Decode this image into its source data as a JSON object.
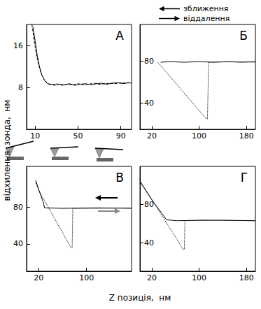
{
  "x_label": "Z позиція,  нм",
  "y_label": "відхилення  зонда,  нм",
  "chart_data": [
    {
      "type": "line",
      "title": "А",
      "grid": false,
      "xlim": [
        2,
        100
      ],
      "xticks": [
        10,
        50,
        90
      ],
      "ylim": [
        0,
        20
      ],
      "yticks": [
        8,
        16
      ],
      "series": [
        {
          "name": "зближення",
          "color": "#000000",
          "line_style": "dashed",
          "x": [
            7,
            9,
            11,
            13,
            15,
            17,
            19,
            21,
            23,
            26,
            30,
            35,
            40,
            45,
            50,
            55,
            60,
            65,
            70,
            75,
            80,
            85,
            90,
            95,
            100
          ],
          "values": [
            20,
            17,
            14.5,
            12.5,
            11,
            10,
            9.3,
            8.9,
            8.6,
            8.5,
            8.7,
            8.4,
            8.6,
            8.5,
            8.7,
            8.5,
            8.6,
            8.8,
            8.6,
            8.7,
            8.8,
            8.7,
            8.9,
            8.8,
            8.9
          ]
        },
        {
          "name": "віддалення",
          "color": "#000000",
          "line_style": "solid",
          "x": [
            8,
            10,
            12,
            14,
            16,
            18,
            20,
            22,
            25,
            28,
            32,
            37,
            42,
            47,
            52,
            57,
            62,
            67,
            72,
            77,
            82,
            87,
            92,
            97,
            100
          ],
          "values": [
            19.5,
            16.8,
            14,
            12,
            10.5,
            9.6,
            9,
            8.7,
            8.6,
            8.4,
            8.6,
            8.5,
            8.7,
            8.4,
            8.6,
            8.7,
            8.5,
            8.7,
            8.8,
            8.6,
            8.8,
            8.9,
            8.7,
            8.9,
            8.8
          ]
        }
      ]
    },
    {
      "type": "line",
      "title": "Б",
      "grid": false,
      "xlim": [
        0,
        195
      ],
      "xticks": [
        20,
        100,
        180
      ],
      "ylim": [
        15,
        115
      ],
      "yticks": [
        40,
        80
      ],
      "series": [
        {
          "name": "зближення",
          "color": "#000000",
          "line_style": "solid",
          "x": [
            195,
            170,
            150,
            125,
            100,
            75,
            50,
            35
          ],
          "values": [
            79.5,
            79,
            79.5,
            79,
            79.5,
            79,
            79.5,
            79
          ]
        },
        {
          "name": "віддалення",
          "color": "#000000",
          "line_style": "dotted",
          "x": [
            30,
            112,
            114,
            116,
            150,
            195
          ],
          "values": [
            79,
            25,
            25,
            79,
            79.5,
            79
          ]
        }
      ]
    },
    {
      "type": "line",
      "title": "В",
      "grid": false,
      "xlim": [
        0,
        175
      ],
      "xticks": [
        20,
        100
      ],
      "ylim": [
        10,
        125
      ],
      "yticks": [
        40,
        80
      ],
      "series": [
        {
          "name": "зближення",
          "color": "#000000",
          "line_style": "solid",
          "x": [
            175,
            120,
            60,
            30,
            28,
            20,
            15
          ],
          "values": [
            79,
            79.5,
            79,
            79.5,
            85,
            100,
            110
          ]
        },
        {
          "name": "віддалення",
          "color": "#000000",
          "line_style": "dotted",
          "x": [
            15,
            20,
            74,
            76,
            77,
            120,
            175
          ],
          "values": [
            108,
            99,
            36,
            36,
            79,
            79,
            79.5
          ]
        }
      ]
    },
    {
      "type": "line",
      "title": "Г",
      "grid": false,
      "xlim": [
        0,
        195
      ],
      "xticks": [
        20,
        100,
        180
      ],
      "ylim": [
        10,
        120
      ],
      "yticks": [
        40,
        80
      ],
      "series": [
        {
          "name": "зближення",
          "color": "#000000",
          "line_style": "solid",
          "x": [
            195,
            140,
            100,
            62,
            45,
            20,
            0
          ],
          "values": [
            63,
            63.5,
            63.5,
            63,
            64,
            85,
            104
          ]
        },
        {
          "name": "віддалення",
          "color": "#000000",
          "line_style": "dotted",
          "x": [
            0,
            73,
            75,
            76,
            120,
            195
          ],
          "values": [
            105,
            33,
            33,
            63,
            63.5,
            63
          ]
        }
      ]
    }
  ]
}
